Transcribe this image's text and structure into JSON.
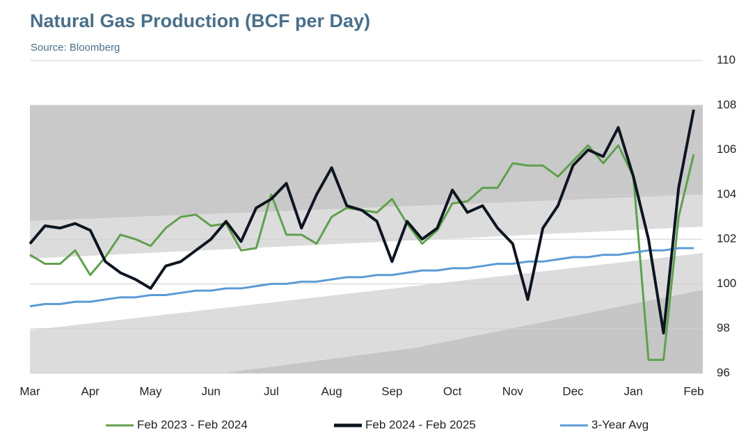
{
  "chart_data": {
    "type": "line",
    "title": "Natural Gas Production (BCF per Day)",
    "subtitle": "Source: Bloomberg",
    "categories": [
      "Mar",
      null,
      null,
      null,
      "Apr",
      null,
      null,
      null,
      "May",
      null,
      null,
      null,
      "Jun",
      null,
      null,
      null,
      "Jul",
      null,
      null,
      null,
      "Aug",
      null,
      null,
      null,
      "Sep",
      null,
      null,
      null,
      "Oct",
      null,
      null,
      null,
      "Nov",
      null,
      null,
      null,
      "Dec",
      null,
      null,
      null,
      "Jan",
      null,
      null,
      null,
      "Feb"
    ],
    "series": [
      {
        "name": "Feb 2023 - Feb 2024",
        "color": "#5fa04e",
        "values": [
          101.3,
          100.9,
          100.9,
          101.5,
          100.4,
          101.2,
          102.2,
          102.0,
          101.7,
          102.5,
          103.0,
          103.1,
          102.6,
          102.7,
          101.5,
          101.6,
          104.0,
          102.2,
          102.2,
          101.8,
          103.0,
          103.4,
          103.3,
          103.2,
          103.8,
          102.7,
          101.8,
          102.4,
          103.6,
          103.7,
          104.3,
          104.3,
          105.4,
          105.3,
          105.3,
          104.8,
          105.5,
          106.2,
          105.4,
          106.2,
          104.8,
          96.6,
          96.6,
          103.0,
          105.8
        ]
      },
      {
        "name": "Feb 2024 - Feb 2025",
        "color": "#0d1520",
        "values": [
          101.8,
          102.6,
          102.5,
          102.7,
          102.4,
          101.0,
          100.5,
          100.2,
          99.8,
          100.8,
          101.0,
          101.5,
          102.0,
          102.8,
          101.9,
          103.4,
          103.8,
          104.5,
          102.5,
          104.0,
          105.2,
          103.5,
          103.3,
          102.8,
          101.0,
          102.8,
          102.0,
          102.5,
          104.2,
          103.2,
          103.5,
          102.5,
          101.8,
          99.3,
          102.5,
          103.5,
          105.3,
          106.0,
          105.7,
          107.0,
          104.8,
          102.0,
          97.8,
          104.3,
          107.8
        ]
      },
      {
        "name": "3-Year Avg",
        "color": "#5b9bd5",
        "values": [
          99.0,
          99.1,
          99.1,
          99.2,
          99.2,
          99.3,
          99.4,
          99.4,
          99.5,
          99.5,
          99.6,
          99.7,
          99.7,
          99.8,
          99.8,
          99.9,
          100.0,
          100.0,
          100.1,
          100.1,
          100.2,
          100.3,
          100.3,
          100.4,
          100.4,
          100.5,
          100.6,
          100.6,
          100.7,
          100.7,
          100.8,
          100.9,
          100.9,
          101.0,
          101.0,
          101.1,
          101.2,
          101.2,
          101.3,
          101.3,
          101.4,
          101.5,
          101.5,
          101.6,
          101.6
        ]
      }
    ],
    "ylim": [
      96,
      110
    ],
    "yticks": [
      96,
      98,
      100,
      102,
      104,
      106,
      108,
      110
    ],
    "grid": true
  }
}
